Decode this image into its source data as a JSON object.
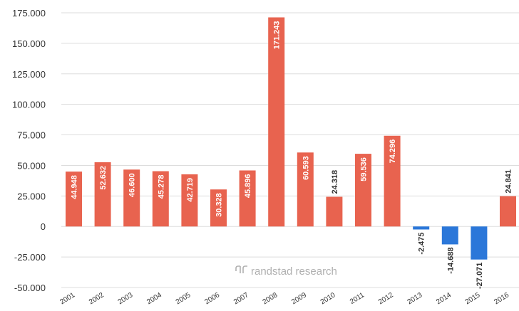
{
  "chart_data": {
    "type": "bar",
    "title": "",
    "xlabel": "",
    "ylabel": "",
    "categories": [
      "2001",
      "2002",
      "2003",
      "2004",
      "2005",
      "2006",
      "2007",
      "2008",
      "2009",
      "2010",
      "2011",
      "2012",
      "2013",
      "2014",
      "2015",
      "2016"
    ],
    "values": [
      44948,
      52632,
      46600,
      45278,
      42719,
      30328,
      45896,
      171243,
      60593,
      24318,
      59536,
      74296,
      -2475,
      -14688,
      -27071,
      24841
    ],
    "value_labels": [
      "44.948",
      "52.632",
      "46.600",
      "45.278",
      "42.719",
      "30.328",
      "45.896",
      "171.243",
      "60.593",
      "24.318",
      "59.536",
      "74.296",
      "-2.475",
      "-14.688",
      "-27.071",
      "24.841"
    ],
    "ylim": [
      -50000,
      175000
    ],
    "yticks": [
      -50000,
      -25000,
      0,
      25000,
      50000,
      75000,
      100000,
      125000,
      150000,
      175000
    ],
    "ytick_labels": [
      "-50.000",
      "-25.000",
      "0",
      "25.000",
      "50.000",
      "75.000",
      "100.000",
      "125.000",
      "150.000",
      "175.000"
    ],
    "grid": true,
    "legend": "none",
    "colors": {
      "positive": "#E8634F",
      "negative": "#2B77D9",
      "grid": "#DDDDDD",
      "watermark": "#B0B0B0"
    },
    "watermark": {
      "text": "randstad research",
      "icon": "randstad-logo-icon"
    }
  }
}
